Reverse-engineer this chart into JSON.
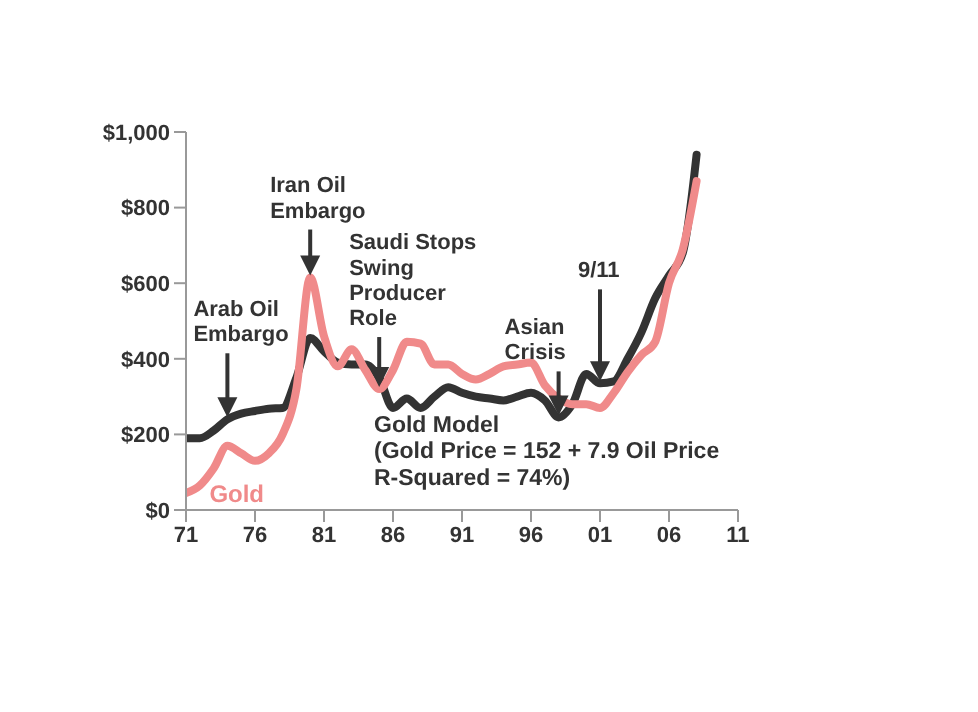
{
  "chart_data": {
    "type": "line",
    "x": [
      1971,
      1972,
      1973,
      1974,
      1975,
      1976,
      1977,
      1978,
      1979,
      1980,
      1981,
      1982,
      1983,
      1984,
      1985,
      1986,
      1987,
      1988,
      1989,
      1990,
      1991,
      1992,
      1993,
      1994,
      1995,
      1996,
      1997,
      1998,
      1999,
      2000,
      2001,
      2002,
      2003,
      2004,
      2005,
      2006,
      2007,
      2008
    ],
    "series": [
      {
        "color": "#333333",
        "values": [
          190,
          190,
          210,
          240,
          255,
          262,
          268,
          270,
          350,
          455,
          420,
          390,
          385,
          385,
          350,
          270,
          295,
          270,
          300,
          325,
          310,
          300,
          295,
          290,
          300,
          310,
          290,
          245,
          280,
          360,
          335,
          340,
          400,
          470,
          560,
          620,
          680,
          940
        ]
      },
      {
        "name": "Gold",
        "color": "#f08a8a",
        "values": [
          45,
          65,
          110,
          170,
          150,
          130,
          150,
          200,
          320,
          615,
          460,
          380,
          425,
          370,
          320,
          370,
          445,
          440,
          385,
          385,
          360,
          345,
          360,
          380,
          385,
          390,
          330,
          295,
          280,
          280,
          270,
          310,
          365,
          410,
          445,
          600,
          690,
          870
        ]
      }
    ],
    "xlim": [
      1971,
      2011
    ],
    "xticks": [
      {
        "value": 1971,
        "label": "71"
      },
      {
        "value": 1976,
        "label": "76"
      },
      {
        "value": 1981,
        "label": "81"
      },
      {
        "value": 1986,
        "label": "86"
      },
      {
        "value": 1991,
        "label": "91"
      },
      {
        "value": 1996,
        "label": "96"
      },
      {
        "value": 2001,
        "label": "01"
      },
      {
        "value": 2006,
        "label": "06"
      },
      {
        "value": 2011,
        "label": "11"
      }
    ],
    "ylim": [
      0,
      1000
    ],
    "yticks": [
      {
        "value": 0,
        "label": "$0"
      },
      {
        "value": 200,
        "label": "$200"
      },
      {
        "value": 400,
        "label": "$400"
      },
      {
        "value": 600,
        "label": "$600"
      },
      {
        "value": 800,
        "label": "$800"
      },
      {
        "value": 1000,
        "label": "$1,000"
      }
    ],
    "grid": false,
    "legend": false,
    "annotations": [
      {
        "text": "Arab Oil\nEmbargo",
        "x": 1974,
        "y": 240
      },
      {
        "text": "Iran Oil\nEmbargo",
        "x": 1980,
        "y": 615
      },
      {
        "text": "Saudi Stops\nSwing\nProducer\nRole",
        "x": 1985,
        "y": 320
      },
      {
        "text": "Asian\nCrisis",
        "x": 1998,
        "y": 245
      },
      {
        "text": "9/11",
        "x": 2001,
        "y": 335
      },
      "Gold Model\n(Gold Price = 152 + 7.9 Oil Price\nR-Squared = 74%)"
    ]
  }
}
